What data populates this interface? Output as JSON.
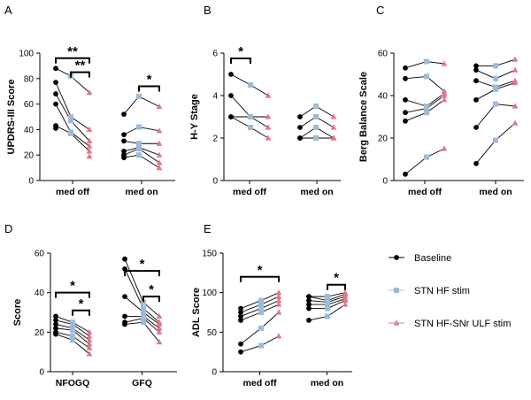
{
  "colors": {
    "baseline": "#000000",
    "hf": "#9bbbd9",
    "ulf": "#e07a87"
  },
  "legend": [
    {
      "key": "baseline",
      "label": "Baseline",
      "marker": "circle"
    },
    {
      "key": "hf",
      "label": "STN HF stim",
      "marker": "square"
    },
    {
      "key": "ulf",
      "label": "STN HF-SNr ULF stim",
      "marker": "triangle"
    }
  ],
  "chart_data": [
    {
      "letter": "A",
      "type": "scatter",
      "ylabel": "UPDRS-III Score",
      "ylim": [
        0,
        100
      ],
      "yticks": [
        0,
        20,
        40,
        60,
        80,
        100
      ],
      "categories": [
        "med off",
        "med on"
      ],
      "groups": [
        {
          "baseline": [
            88,
            77,
            68,
            60,
            43,
            41
          ],
          "hf": [
            82,
            50,
            47,
            38,
            37
          ],
          "ulf": [
            69,
            40,
            31,
            27,
            23,
            19
          ]
        },
        {
          "baseline": [
            52,
            36,
            31,
            23,
            20,
            18
          ],
          "hf": [
            66,
            42,
            29,
            26,
            25,
            20
          ],
          "ulf": [
            58,
            39,
            29,
            20,
            14,
            10
          ]
        }
      ],
      "brackets": [
        {
          "from": "baseline",
          "to": "ulf",
          "group": 0,
          "y": 96,
          "label": "**"
        },
        {
          "from": "hf",
          "to": "ulf",
          "group": 0,
          "y": 85,
          "label": "**"
        },
        {
          "from": "hf",
          "to": "ulf",
          "group": 1,
          "y": 74,
          "label": "*"
        }
      ]
    },
    {
      "letter": "B",
      "type": "scatter",
      "ylabel": "H-Y Stage",
      "ylim": [
        0,
        6
      ],
      "yticks": [
        0,
        2,
        4,
        6
      ],
      "categories": [
        "med off",
        "med on"
      ],
      "groups": [
        {
          "baseline": [
            5,
            4,
            3,
            3
          ],
          "hf": [
            4.5,
            3,
            3,
            2.5
          ],
          "ulf": [
            4,
            3,
            2.5,
            2
          ]
        },
        {
          "baseline": [
            3,
            2.5,
            2,
            2
          ],
          "hf": [
            3.5,
            3,
            2.5,
            2
          ],
          "ulf": [
            3,
            2.5,
            2,
            2
          ]
        }
      ],
      "brackets": [
        {
          "from": "baseline",
          "to": "hf",
          "group": 0,
          "y": 5.75,
          "label": "*"
        }
      ]
    },
    {
      "letter": "C",
      "type": "scatter",
      "ylabel": "Berg Balance Scale",
      "ylim": [
        0,
        60
      ],
      "yticks": [
        0,
        20,
        40,
        60
      ],
      "categories": [
        "med off",
        "med on"
      ],
      "groups": [
        {
          "baseline": [
            53,
            48,
            38,
            32,
            28,
            3
          ],
          "hf": [
            56,
            49,
            35,
            34,
            32,
            11
          ],
          "ulf": [
            55,
            42,
            41,
            40,
            38,
            15
          ]
        },
        {
          "baseline": [
            54,
            52,
            47,
            38,
            25,
            8
          ],
          "hf": [
            54,
            48,
            44,
            43,
            36,
            19
          ],
          "ulf": [
            57,
            52,
            47,
            46,
            35,
            27
          ]
        }
      ],
      "brackets": []
    },
    {
      "letter": "D",
      "type": "scatter",
      "ylabel": "Score",
      "ylim": [
        0,
        60
      ],
      "yticks": [
        0,
        20,
        40,
        60
      ],
      "categories": [
        "NFOGQ",
        "GFQ"
      ],
      "groups": [
        {
          "baseline": [
            28,
            26,
            24,
            22,
            20,
            19
          ],
          "hf": [
            25,
            24,
            22,
            21,
            18,
            16
          ],
          "ulf": [
            20,
            18,
            16,
            14,
            12,
            9
          ]
        },
        {
          "baseline": [
            57,
            52,
            38,
            28,
            25,
            24
          ],
          "hf": [
            35,
            32,
            30,
            28,
            27,
            25
          ],
          "ulf": [
            28,
            25,
            24,
            22,
            20,
            15
          ]
        }
      ],
      "brackets": [
        {
          "from": "baseline",
          "to": "ulf",
          "group": 0,
          "y": 40,
          "label": "*"
        },
        {
          "from": "hf",
          "to": "ulf",
          "group": 0,
          "y": 31,
          "label": "*"
        },
        {
          "from": "baseline",
          "to": "ulf",
          "group": 1,
          "y": 51,
          "label": "*"
        },
        {
          "from": "hf",
          "to": "ulf",
          "group": 1,
          "y": 38,
          "label": "*"
        }
      ]
    },
    {
      "letter": "E",
      "type": "scatter",
      "ylabel": "ADL Score",
      "ylim": [
        0,
        150
      ],
      "yticks": [
        0,
        50,
        100,
        150
      ],
      "categories": [
        "med off",
        "med on"
      ],
      "groups": [
        {
          "baseline": [
            80,
            75,
            70,
            65,
            35,
            25
          ],
          "hf": [
            90,
            85,
            80,
            75,
            55,
            33
          ],
          "ulf": [
            100,
            95,
            90,
            85,
            75,
            45
          ]
        },
        {
          "baseline": [
            95,
            95,
            90,
            85,
            80,
            65
          ],
          "hf": [
            95,
            90,
            88,
            85,
            80,
            70
          ],
          "ulf": [
            100,
            98,
            95,
            92,
            90,
            85
          ]
        }
      ],
      "brackets": [
        {
          "from": "baseline",
          "to": "ulf",
          "group": 0,
          "y": 120,
          "label": "*"
        },
        {
          "from": "hf",
          "to": "ulf",
          "group": 1,
          "y": 110,
          "label": "*"
        }
      ]
    }
  ]
}
